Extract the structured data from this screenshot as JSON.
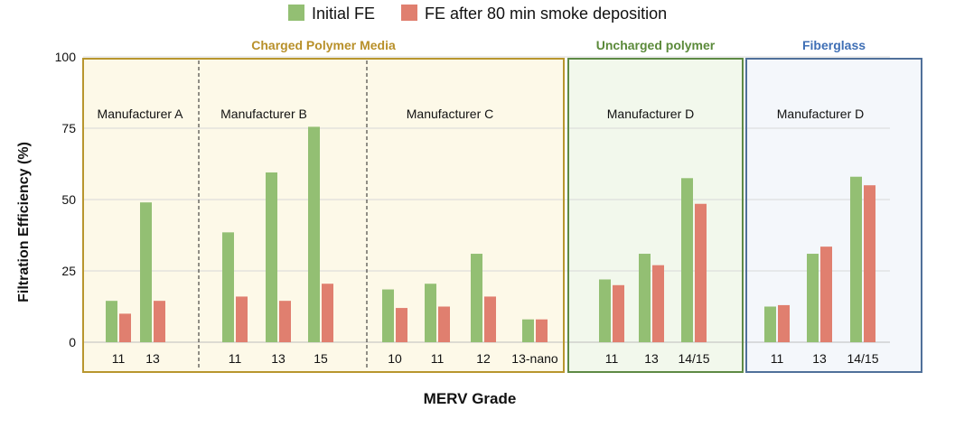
{
  "chart_data": {
    "type": "bar",
    "title": "",
    "xlabel": "MERV Grade",
    "ylabel": "Filtration Efficiency (%)",
    "ylim": [
      0,
      100
    ],
    "yticks": [
      0,
      25,
      50,
      75,
      100
    ],
    "grid": true,
    "legend_position": "top",
    "series": [
      {
        "name": "Initial FE",
        "color": "#93bf73"
      },
      {
        "name": "FE after 80 min smoke deposition",
        "color": "#e07f6f"
      }
    ],
    "groups": [
      {
        "label": "Charged Polymer Media",
        "label_color": "#b8902a",
        "border_color": "#b8962e",
        "fill_color": "#fdf9e8",
        "sections": [
          {
            "manufacturer": "Manufacturer A",
            "categories": [
              "11",
              "13"
            ],
            "initial": [
              14.5,
              49
            ],
            "after": [
              10,
              14.5
            ]
          },
          {
            "manufacturer": "Manufacturer B",
            "categories": [
              "11",
              "13",
              "15"
            ],
            "initial": [
              38.5,
              59.5,
              75.5
            ],
            "after": [
              16,
              14.5,
              20.5
            ]
          },
          {
            "manufacturer": "Manufacturer C",
            "categories": [
              "10",
              "11",
              "12",
              "13-nano"
            ],
            "initial": [
              18.5,
              20.5,
              31,
              8
            ],
            "after": [
              12,
              12.5,
              16,
              8
            ]
          }
        ]
      },
      {
        "label": "Uncharged polymer",
        "label_color": "#5b8a3a",
        "border_color": "#5e8a45",
        "fill_color": "#f2f8ec",
        "sections": [
          {
            "manufacturer": "Manufacturer D",
            "categories": [
              "11",
              "13",
              "14/15"
            ],
            "initial": [
              22,
              31,
              57.5
            ],
            "after": [
              20,
              27,
              48.5
            ]
          }
        ]
      },
      {
        "label": "Fiberglass",
        "label_color": "#3f6fb5",
        "border_color": "#50709a",
        "fill_color": "#f4f7fb",
        "sections": [
          {
            "manufacturer": "Manufacturer D",
            "categories": [
              "11",
              "13",
              "14/15"
            ],
            "initial": [
              12.5,
              31,
              58
            ],
            "after": [
              13,
              33.5,
              55
            ]
          }
        ]
      }
    ]
  }
}
